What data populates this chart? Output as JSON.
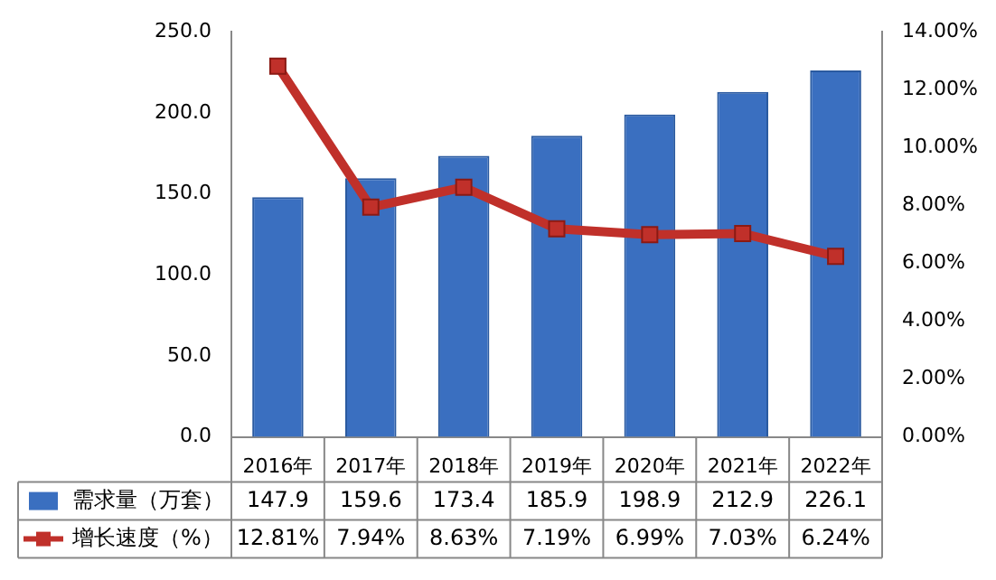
{
  "chart_data": {
    "type": "bar",
    "categories": [
      "2016年",
      "2017年",
      "2018年",
      "2019年",
      "2020年",
      "2021年",
      "2022年"
    ],
    "series": [
      {
        "name": "需求量（万套）",
        "color": "#3a6fc0",
        "values": [
          147.9,
          159.6,
          173.4,
          185.9,
          198.9,
          212.9,
          226.1
        ],
        "value_labels": [
          "147.9",
          "159.6",
          "173.4",
          "185.9",
          "198.9",
          "212.9",
          "226.1"
        ]
      },
      {
        "name": "增长速度（%）",
        "type": "line",
        "axis": "y2",
        "color": "#c0302a",
        "marker": "square",
        "values": [
          12.81,
          7.94,
          8.63,
          7.19,
          6.99,
          7.03,
          6.24
        ],
        "value_labels": [
          "12.81%",
          "7.94%",
          "8.63%",
          "7.19%",
          "6.99%",
          "7.03%",
          "6.24%"
        ]
      }
    ],
    "ylim": [
      0,
      250
    ],
    "yticks": [
      {
        "value": 0,
        "label": "0.0"
      },
      {
        "value": 50,
        "label": "50.0"
      },
      {
        "value": 100,
        "label": "100.0"
      },
      {
        "value": 150,
        "label": "150.0"
      },
      {
        "value": 200,
        "label": "200.0"
      },
      {
        "value": 250,
        "label": "250.0"
      }
    ],
    "y2lim": [
      0,
      14
    ],
    "y2ticks": [
      {
        "value": 0,
        "label": "0.00%"
      },
      {
        "value": 2,
        "label": "2.00%"
      },
      {
        "value": 4,
        "label": "4.00%"
      },
      {
        "value": 6,
        "label": "6.00%"
      },
      {
        "value": 8,
        "label": "8.00%"
      },
      {
        "value": 10,
        "label": "10.00%"
      },
      {
        "value": 12,
        "label": "12.00%"
      },
      {
        "value": 14,
        "label": "14.00%"
      }
    ],
    "grid": false,
    "legend": "bottom"
  }
}
